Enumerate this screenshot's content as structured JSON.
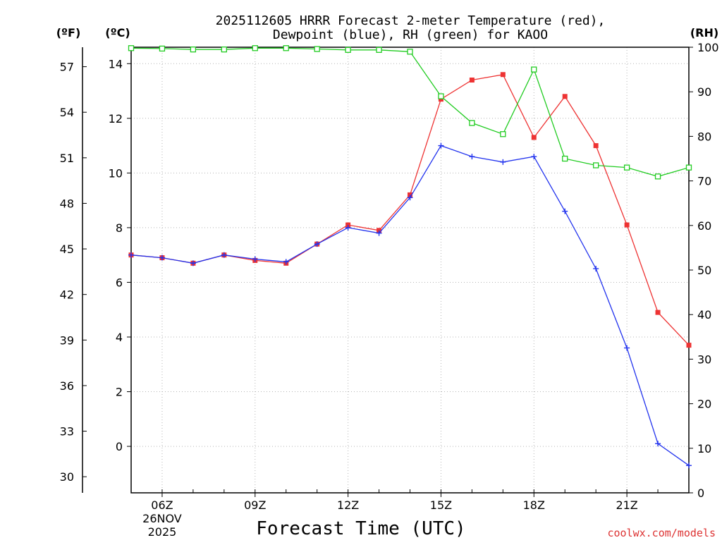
{
  "chart_data": {
    "type": "line",
    "title_line1": "2025112605 HRRR Forecast 2-meter Temperature (red),",
    "title_line2": "Dewpoint (blue), RH (green) for KAOO",
    "xlabel": "Forecast Time (UTC)",
    "credit": "coolwx.com/models",
    "units": {
      "fahrenheit": "(ºF)",
      "celsius": "(ºC)",
      "rh": "(RH)"
    },
    "x_hours": [
      5,
      6,
      7,
      8,
      9,
      10,
      11,
      12,
      13,
      14,
      15,
      16,
      17,
      18,
      19,
      20,
      21,
      22,
      23
    ],
    "x_ticks": [
      {
        "hour": 6,
        "label": "06Z",
        "date": "26NOV",
        "year": "2025"
      },
      {
        "hour": 9,
        "label": "09Z"
      },
      {
        "hour": 12,
        "label": "12Z"
      },
      {
        "hour": 15,
        "label": "15Z"
      },
      {
        "hour": 18,
        "label": "18Z"
      },
      {
        "hour": 21,
        "label": "21Z"
      }
    ],
    "xlim": [
      5,
      23
    ],
    "ylim_celsius": [
      -1.7,
      14.6
    ],
    "y_ticks_celsius": [
      "0",
      "2",
      "4",
      "6",
      "8",
      "10",
      "12",
      "14"
    ],
    "y_ticks_fahrenheit": [
      "30",
      "33",
      "36",
      "39",
      "42",
      "45",
      "48",
      "51",
      "54",
      "57"
    ],
    "ylim_rh": [
      0,
      100
    ],
    "y_ticks_rh": [
      "0",
      "10",
      "20",
      "30",
      "40",
      "50",
      "60",
      "70",
      "80",
      "90",
      "100"
    ],
    "series": [
      {
        "name": "Temperature",
        "color": "#ee3333",
        "axis": "celsius",
        "marker": "filled-square",
        "values": [
          7.0,
          6.9,
          6.7,
          7.0,
          6.8,
          6.7,
          7.4,
          8.1,
          7.9,
          9.2,
          12.7,
          13.4,
          13.6,
          11.3,
          12.8,
          11.0,
          8.1,
          4.9,
          3.7
        ]
      },
      {
        "name": "Dewpoint",
        "color": "#2233ee",
        "axis": "celsius",
        "marker": "plus",
        "values": [
          7.0,
          6.9,
          6.7,
          7.0,
          6.85,
          6.75,
          7.4,
          8.0,
          7.8,
          9.1,
          11.0,
          10.6,
          10.4,
          10.6,
          8.6,
          6.5,
          3.6,
          0.1,
          -0.7
        ]
      },
      {
        "name": "RH",
        "color": "#22cc22",
        "axis": "rh",
        "marker": "open-square",
        "values": [
          99.8,
          99.7,
          99.5,
          99.5,
          99.8,
          99.8,
          99.6,
          99.4,
          99.4,
          99.0,
          89.0,
          83.0,
          80.5,
          95.0,
          75.0,
          73.5,
          73.0,
          71.0,
          73.0
        ]
      }
    ]
  }
}
